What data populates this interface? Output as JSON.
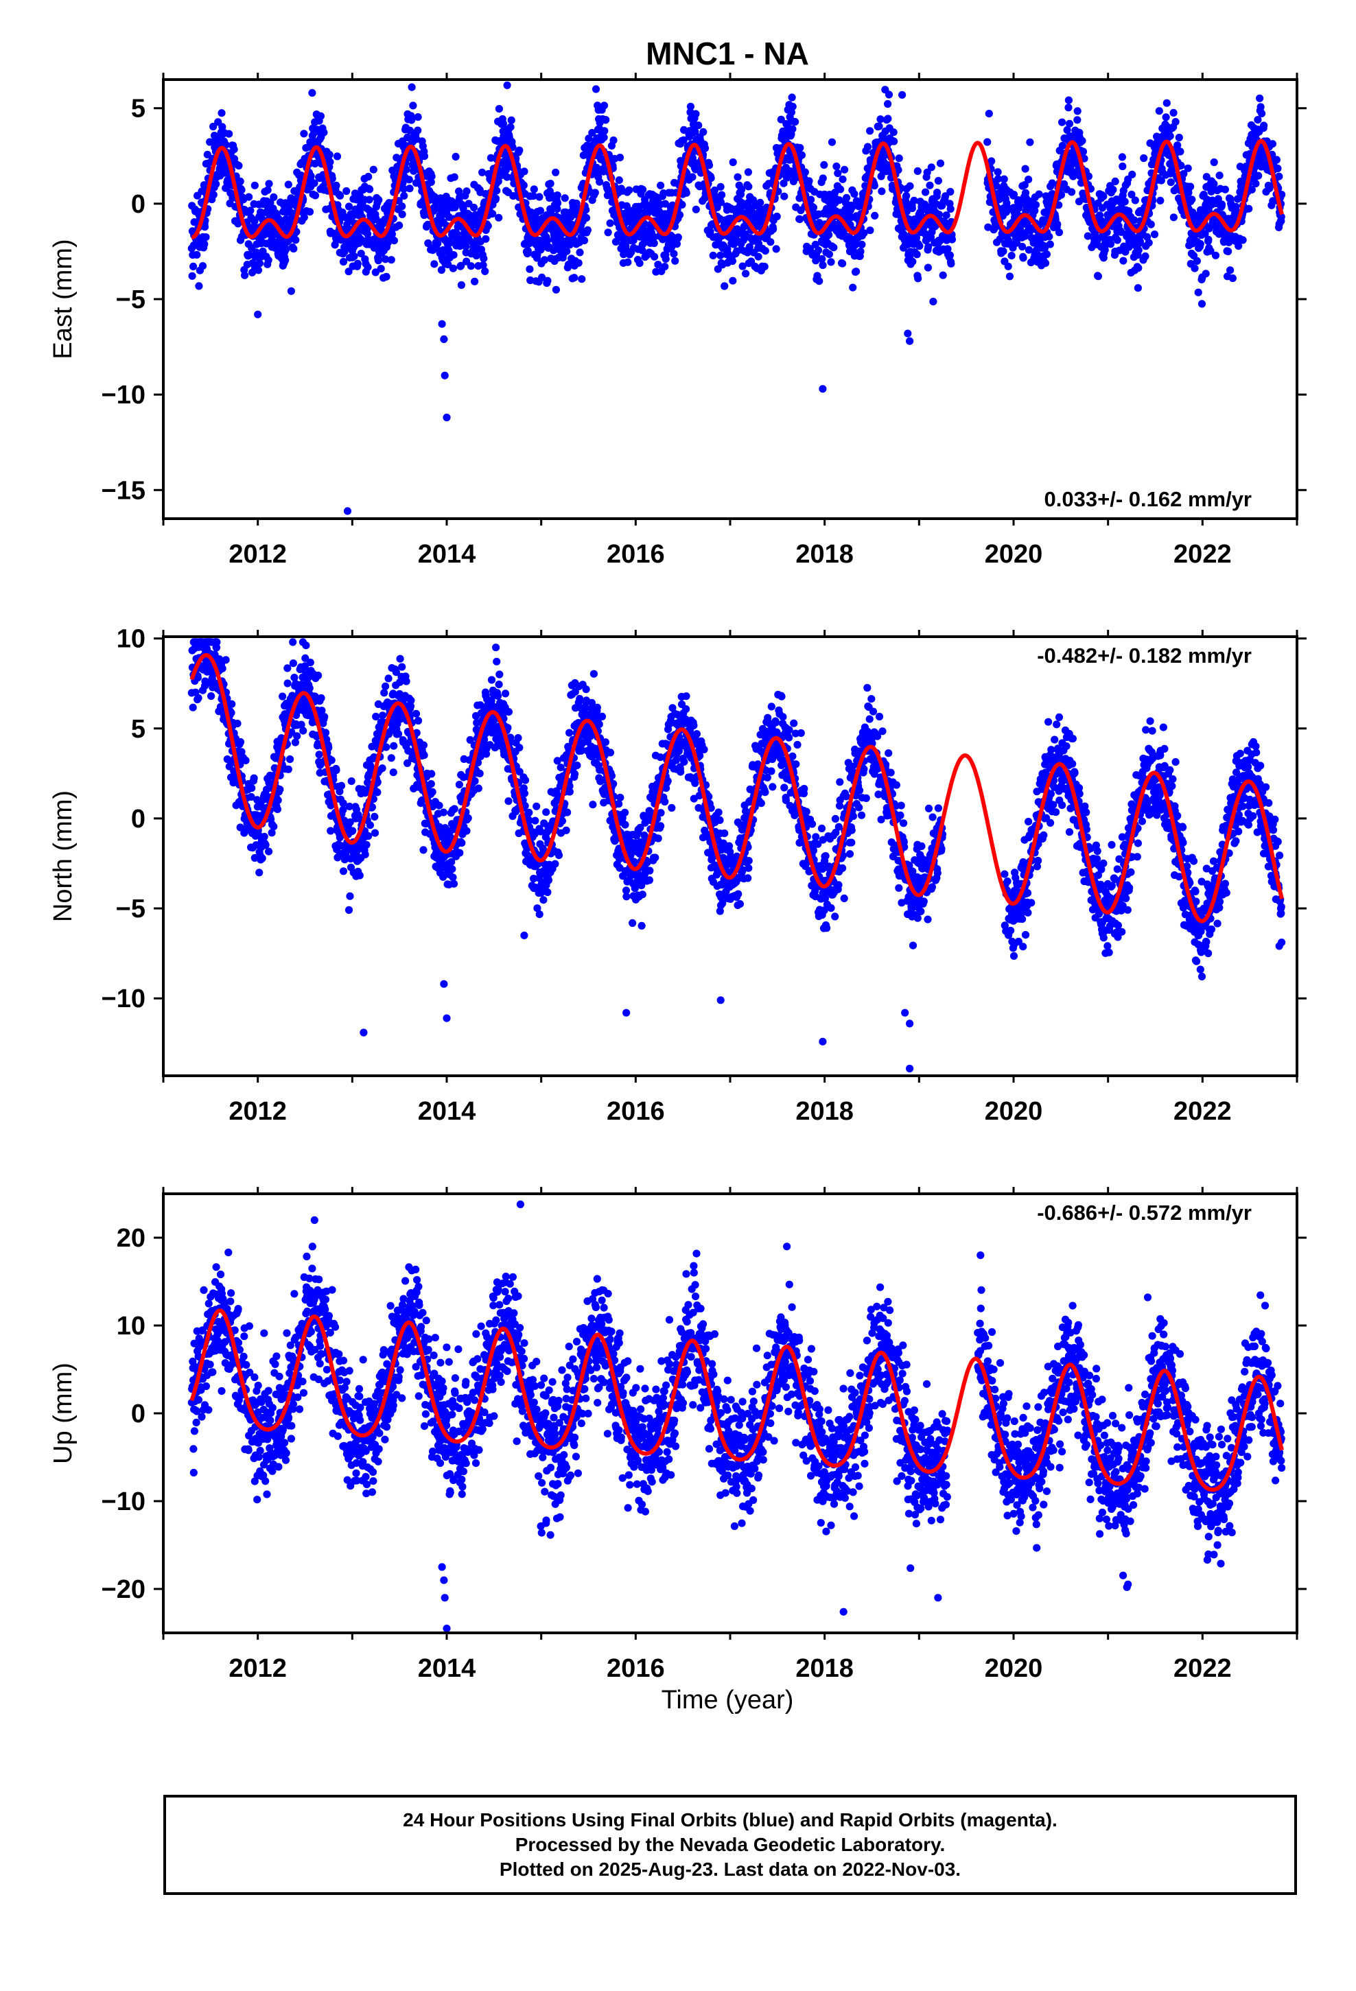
{
  "title": "MNC1 - NA",
  "x_axis_label": "Time (year)",
  "colors": {
    "points": "#0000ff",
    "model": "#ff0000",
    "frame": "#000000"
  },
  "footer": {
    "line1": "24 Hour Positions Using Final Orbits (blue) and Rapid Orbits (magenta).",
    "line2": "Processed by the Nevada Geodetic Laboratory.",
    "line3": "Plotted on 2025-Aug-23. Last data on 2022-Nov-03."
  },
  "chart_data": [
    {
      "type": "scatter",
      "component": "east",
      "ylabel": "East (mm)",
      "xlim": [
        2011.0,
        2023.0
      ],
      "ylim": [
        -16.5,
        6.5
      ],
      "xticks": [
        2012,
        2014,
        2016,
        2018,
        2020,
        2022
      ],
      "yticks": [
        5,
        0,
        -5,
        -10,
        -15
      ],
      "rate_label": "0.033+/- 0.162 mm/yr",
      "rate_position": "bottom-right",
      "data_start": 2011.3,
      "data_end": 2022.84,
      "model": {
        "offset": 0.0,
        "annual_amp": 1.9,
        "annual_peak": 0.62,
        "semiannual_amp": 1.2,
        "semiannual_peak": 0.62,
        "rate_mm_per_yr": 0.033,
        "trend_ref": 2017.0
      },
      "scatter_sd": 1.1,
      "gaps": [
        [
          2019.35,
          2019.72
        ]
      ],
      "outliers": [
        {
          "x": 2012.0,
          "y": -5.8
        },
        {
          "x": 2012.95,
          "y": -16.1
        },
        {
          "x": 2013.95,
          "y": -6.3
        },
        {
          "x": 2013.97,
          "y": -7.1
        },
        {
          "x": 2013.98,
          "y": -9.0
        },
        {
          "x": 2014.0,
          "y": -11.2
        },
        {
          "x": 2017.98,
          "y": -9.7
        },
        {
          "x": 2018.9,
          "y": -7.2
        },
        {
          "x": 2018.88,
          "y": -6.8
        },
        {
          "x": 2013.63,
          "y": 6.1
        },
        {
          "x": 2015.58,
          "y": 6.0
        },
        {
          "x": 2018.82,
          "y": 5.7
        }
      ],
      "series": [
        {
          "name": "",
          "kind": "daily positions (final orbits)"
        },
        {
          "name": "",
          "kind": "model fit"
        }
      ]
    },
    {
      "type": "scatter",
      "component": "north",
      "ylabel": "North (mm)",
      "xlim": [
        2011.0,
        2023.0
      ],
      "ylim": [
        -14.3,
        10.1
      ],
      "xticks": [
        2012,
        2014,
        2016,
        2018,
        2020,
        2022
      ],
      "yticks": [
        10,
        5,
        0,
        -5,
        -10
      ],
      "rate_label": "-0.482+/- 0.182 mm/yr",
      "rate_position": "top-right",
      "data_start": 2011.3,
      "data_end": 2022.84,
      "model": {
        "offset": 0.7,
        "annual_amp": 4.0,
        "annual_peak": 0.49,
        "semiannual_amp": 0.0,
        "semiannual_peak": 0.0,
        "rate_mm_per_yr": -0.482,
        "trend_ref": 2017.0,
        "start_bump": 2.8
      },
      "scatter_sd": 1.2,
      "gaps": [
        [
          2019.25,
          2019.9
        ]
      ],
      "outliers": [
        {
          "x": 2013.12,
          "y": -11.9
        },
        {
          "x": 2013.97,
          "y": -9.2
        },
        {
          "x": 2014.0,
          "y": -11.1
        },
        {
          "x": 2015.9,
          "y": -10.8
        },
        {
          "x": 2016.9,
          "y": -10.1
        },
        {
          "x": 2017.98,
          "y": -12.4
        },
        {
          "x": 2018.85,
          "y": -10.8
        },
        {
          "x": 2018.9,
          "y": -11.4
        },
        {
          "x": 2018.9,
          "y": -13.9
        },
        {
          "x": 2014.52,
          "y": 9.5
        },
        {
          "x": 2011.4,
          "y": 9.8
        },
        {
          "x": 2014.82,
          "y": -6.5
        }
      ],
      "series": [
        {
          "name": "",
          "kind": "daily positions (final orbits)"
        },
        {
          "name": "",
          "kind": "model fit"
        }
      ]
    },
    {
      "type": "scatter",
      "component": "up",
      "ylabel": "Up (mm)",
      "xlim": [
        2011.0,
        2023.0
      ],
      "ylim": [
        -25.0,
        25.0
      ],
      "xticks": [
        2012,
        2014,
        2016,
        2018,
        2020,
        2022
      ],
      "yticks": [
        20,
        10,
        0,
        -10,
        -20
      ],
      "rate_label": "-0.686+/- 0.572 mm/yr",
      "rate_position": "top-right",
      "data_start": 2011.3,
      "data_end": 2022.84,
      "model": {
        "offset": 0.4,
        "annual_amp": 6.6,
        "annual_peak": 0.6,
        "semiannual_amp": 1.0,
        "semiannual_peak": 0.6,
        "rate_mm_per_yr": -0.686,
        "trend_ref": 2017.0
      },
      "scatter_sd": 3.3,
      "gaps": [
        [
          2019.3,
          2019.62
        ]
      ],
      "outliers": [
        {
          "x": 2013.95,
          "y": -17.5
        },
        {
          "x": 2013.97,
          "y": -19.0
        },
        {
          "x": 2013.98,
          "y": -21.0
        },
        {
          "x": 2014.0,
          "y": -24.5
        },
        {
          "x": 2014.78,
          "y": 23.8
        },
        {
          "x": 2012.6,
          "y": 22.0
        },
        {
          "x": 2017.6,
          "y": 19.0
        },
        {
          "x": 2019.65,
          "y": 18.0
        },
        {
          "x": 2021.42,
          "y": 13.2
        },
        {
          "x": 2018.2,
          "y": -22.6
        },
        {
          "x": 2021.2,
          "y": -19.8
        },
        {
          "x": 2019.2,
          "y": -21.0
        }
      ],
      "series": [
        {
          "name": "",
          "kind": "daily positions (final orbits)"
        },
        {
          "name": "",
          "kind": "model fit"
        }
      ]
    }
  ]
}
